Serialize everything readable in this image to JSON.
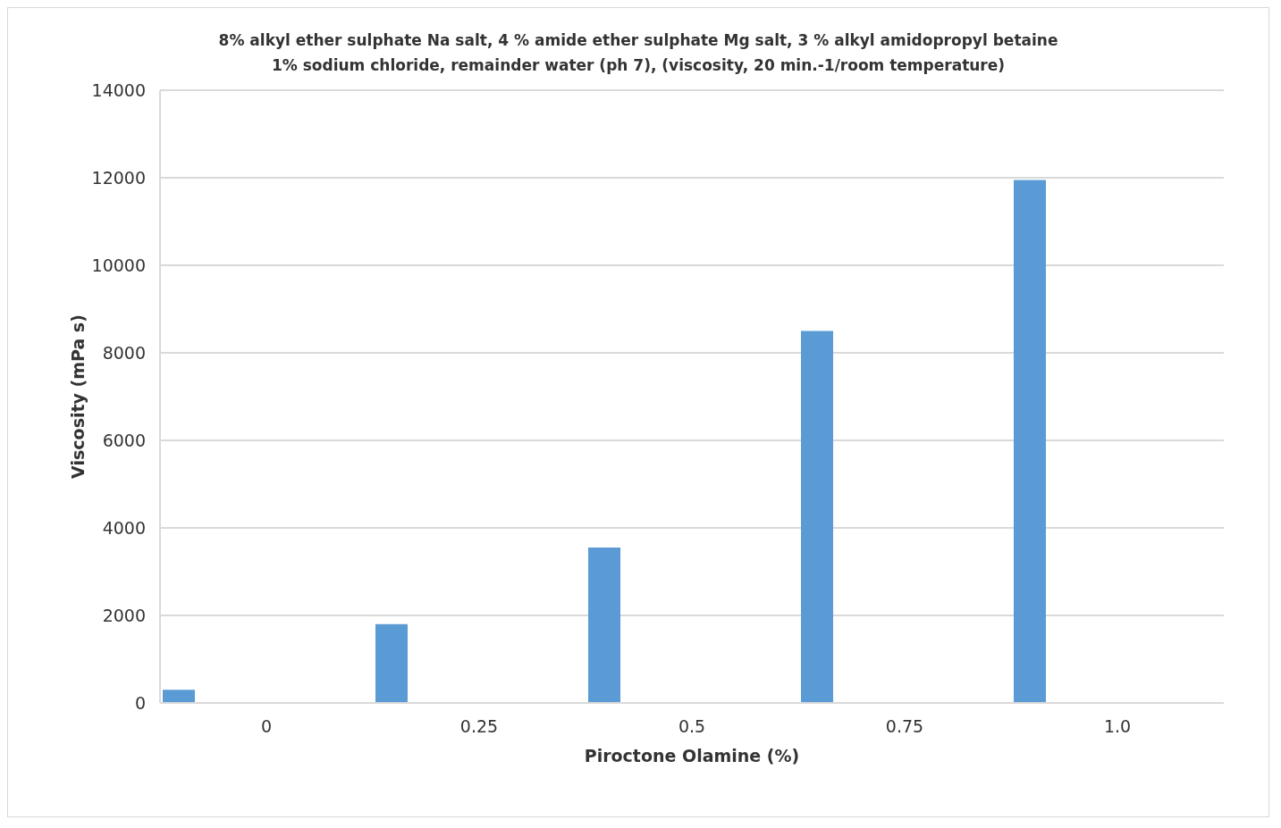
{
  "chart_data": {
    "type": "bar",
    "title": "8% alkyl ether sulphate Na salt, 4 % amide ether sulphate Mg salt, 3 % alkyl amidopropyl betaine\n1% sodium chloride, remainder water (ph 7), (viscosity, 20 min.-1/room temperature)",
    "xlabel": "Piroctone Olamine (%)",
    "ylabel": "Viscosity (mPa s)",
    "categories": [
      "0",
      "0.25",
      "0.5",
      "0.75",
      "1.0"
    ],
    "values": [
      300,
      1800,
      3550,
      8500,
      11950
    ],
    "color": "#5b9bd5",
    "ylim": [
      0,
      14000
    ],
    "yticks": [
      0,
      2000,
      4000,
      6000,
      8000,
      10000,
      12000,
      14000
    ],
    "grid": "y"
  }
}
